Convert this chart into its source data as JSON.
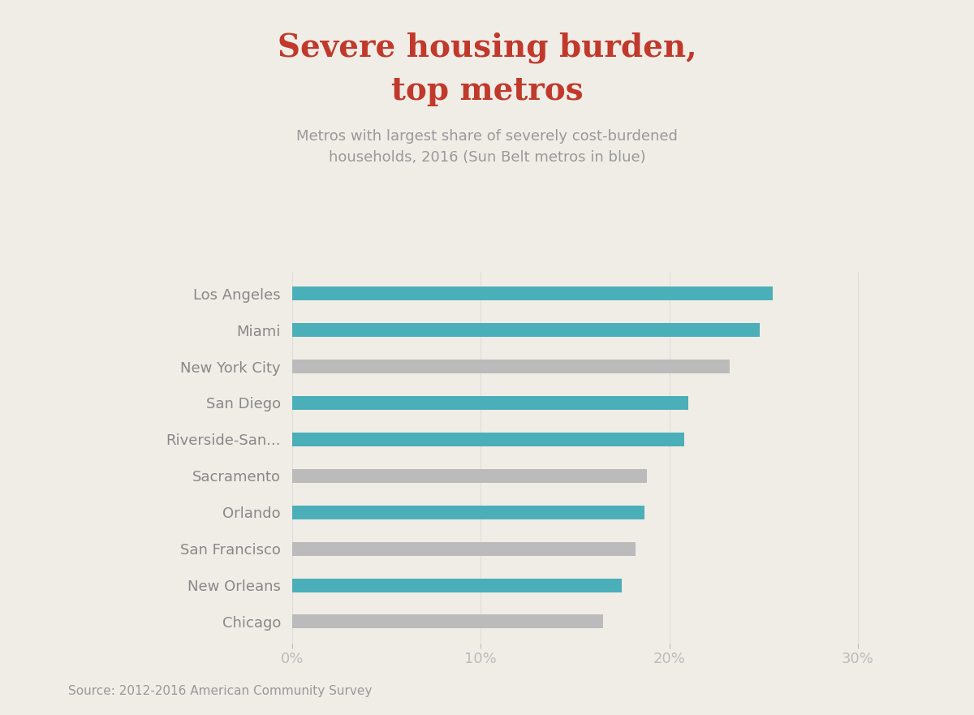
{
  "title_line1": "Severe housing burden,",
  "title_line2": "top metros",
  "subtitle": "Metros with largest share of severely cost-burdened\nhouseholds, 2016 (Sun Belt metros in blue)",
  "source": "Source: 2012-2016 American Community Survey",
  "categories": [
    "Los Angeles",
    "Miami",
    "New York City",
    "San Diego",
    "Riverside-San...",
    "Sacramento",
    "Orlando",
    "San Francisco",
    "New Orleans",
    "Chicago"
  ],
  "values": [
    25.5,
    24.8,
    23.2,
    21.0,
    20.8,
    18.8,
    18.7,
    18.2,
    17.5,
    16.5
  ],
  "sun_belt": [
    true,
    true,
    false,
    true,
    true,
    false,
    true,
    false,
    true,
    false
  ],
  "bar_color_sunbelt": "#4AAFB8",
  "bar_color_other": "#BBBBBB",
  "background_color": "#F0EDE7",
  "title_color": "#C0392B",
  "subtitle_color": "#999999",
  "axis_label_color": "#BBBBBB",
  "category_label_color": "#888888",
  "grid_color": "#DDDDDD",
  "xlim": [
    0,
    31
  ],
  "xticks": [
    0,
    10,
    20,
    30
  ],
  "xtick_labels": [
    "0%",
    "10%",
    "20%",
    "30%"
  ],
  "title_fontsize": 28,
  "subtitle_fontsize": 13,
  "category_fontsize": 13,
  "source_fontsize": 11,
  "xtick_fontsize": 13,
  "bar_height": 0.38
}
